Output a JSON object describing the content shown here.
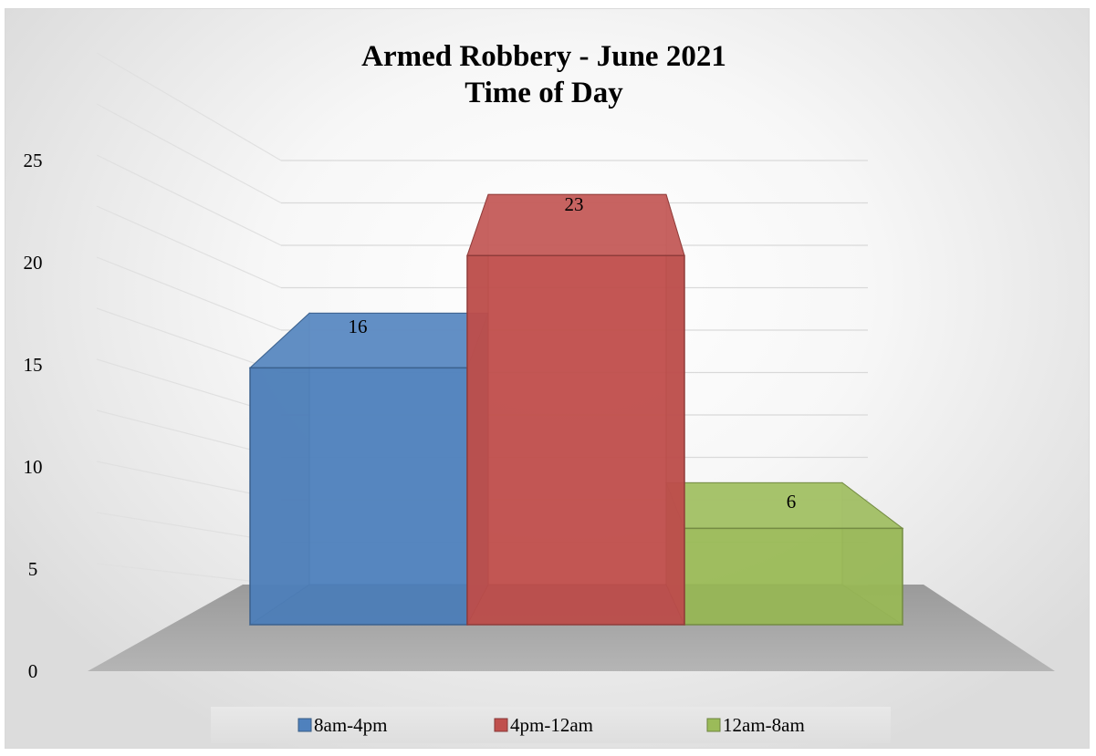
{
  "chart_data": {
    "type": "bar",
    "title": "Armed Robbery - June 2021",
    "subtitle": "Time of Day",
    "categories": [
      ""
    ],
    "series": [
      {
        "name": "8am-4pm",
        "values": [
          16
        ],
        "color": "#4f81bd"
      },
      {
        "name": "4pm-12am",
        "values": [
          23
        ],
        "color": "#c0504d"
      },
      {
        "name": "12am-8am",
        "values": [
          6
        ],
        "color": "#9bbb59"
      }
    ],
    "data_labels": [
      "16",
      "23",
      "6"
    ],
    "ylim": [
      0,
      25
    ],
    "yticks": [
      "0",
      "5",
      "10",
      "15",
      "20",
      "25"
    ],
    "xlabel": "",
    "ylabel": "",
    "grid": true,
    "legend_position": "bottom",
    "style": "3d-column"
  }
}
